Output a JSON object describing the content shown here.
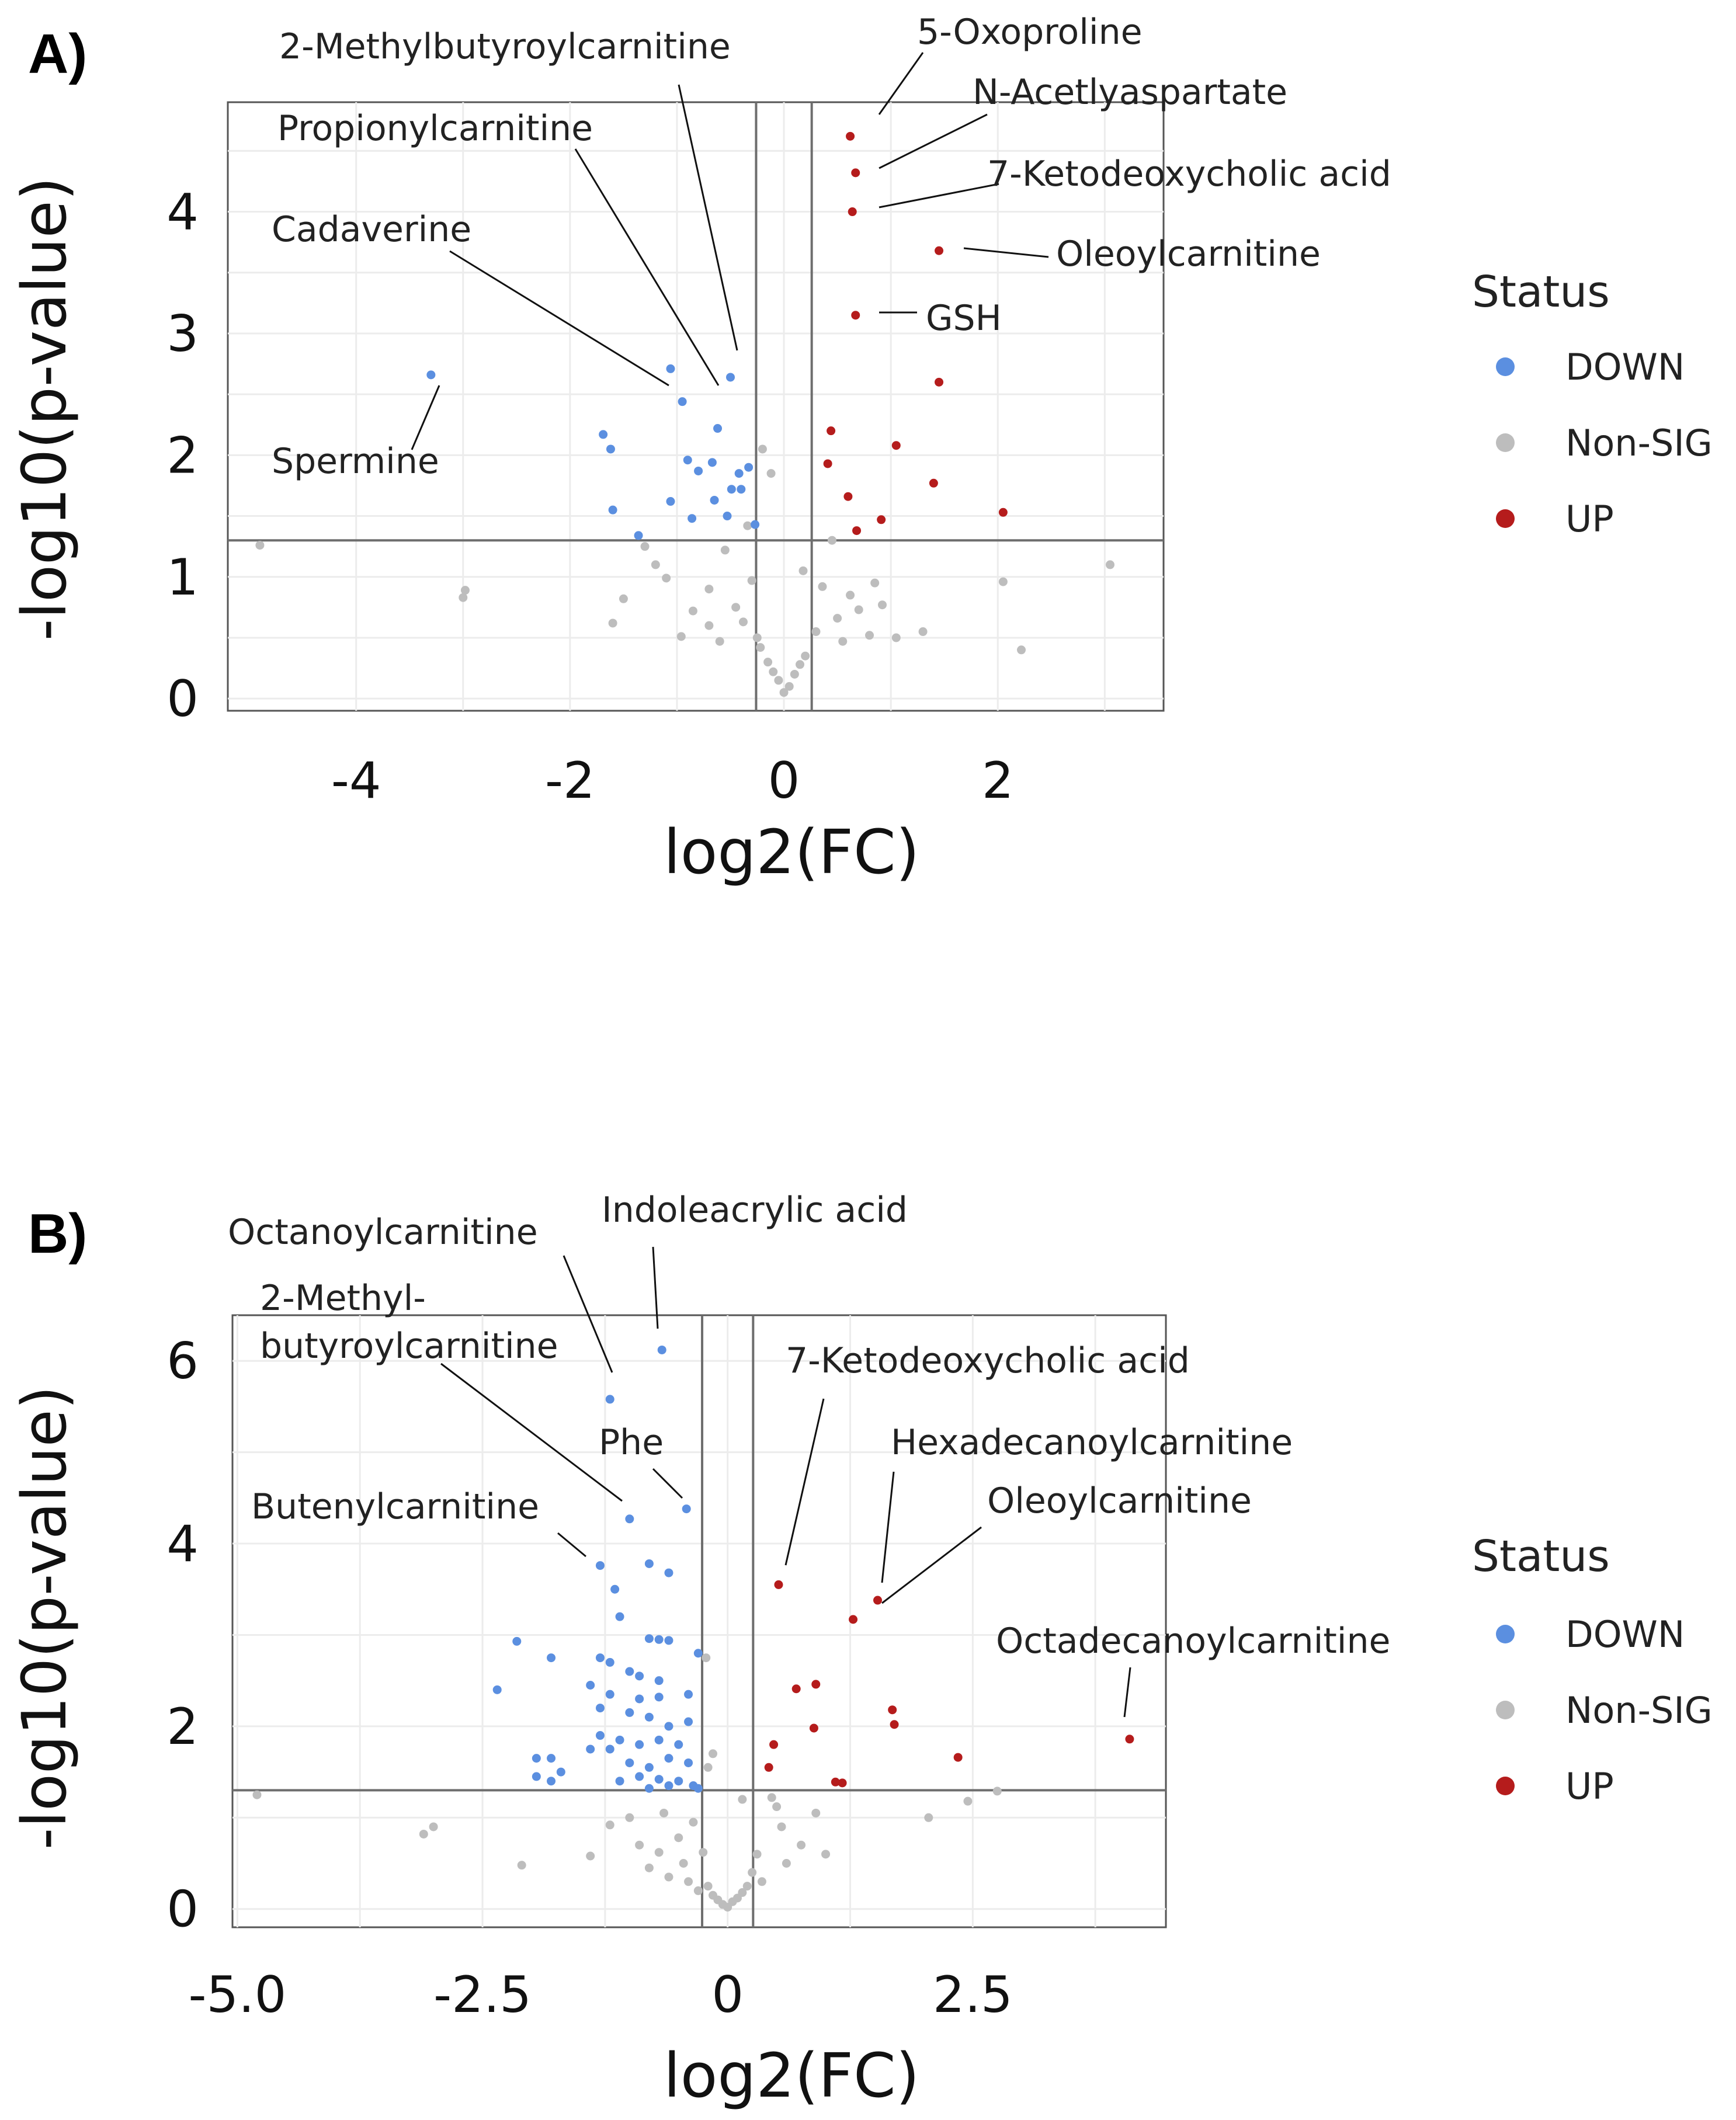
{
  "colors": {
    "DOWN": "#5b8fe0",
    "Non-SIG": "#bdbdbd",
    "UP": "#b51c1c"
  },
  "chart_data": [
    {
      "type": "scatter",
      "panel_label": "A)",
      "xlabel": "log2(FC)",
      "ylabel": "-log10(p-value)",
      "xlim": [
        -5.2,
        3.55
      ],
      "ylim": [
        -0.1,
        4.9
      ],
      "xticks": [
        -4,
        -2,
        0,
        2
      ],
      "xtick_labels": [
        "-4",
        "-2",
        "0",
        "2"
      ],
      "yticks": [
        0,
        1,
        2,
        3,
        4
      ],
      "ytick_labels": [
        "0",
        "1",
        "2",
        "3",
        "4"
      ],
      "grid": true,
      "thresholds": {
        "fc": [
          -0.26,
          0.26
        ],
        "p": 1.3
      },
      "legend": {
        "title": "Status",
        "position": "right",
        "entries": [
          "DOWN",
          "Non-SIG",
          "UP"
        ]
      },
      "series": [
        {
          "name": "DOWN",
          "points": [
            [
              -3.3,
              2.66
            ],
            [
              -1.06,
              2.71
            ],
            [
              -0.5,
              2.64
            ],
            [
              -0.95,
              2.44
            ],
            [
              -0.62,
              2.22
            ],
            [
              -1.69,
              2.17
            ],
            [
              -1.62,
              2.05
            ],
            [
              -0.9,
              1.96
            ],
            [
              -0.67,
              1.94
            ],
            [
              -0.8,
              1.87
            ],
            [
              -0.33,
              1.9
            ],
            [
              -0.42,
              1.85
            ],
            [
              -0.49,
              1.72
            ],
            [
              -0.4,
              1.72
            ],
            [
              -0.65,
              1.63
            ],
            [
              -1.06,
              1.62
            ],
            [
              -1.6,
              1.55
            ],
            [
              -0.86,
              1.48
            ],
            [
              -0.53,
              1.5
            ],
            [
              -0.27,
              1.43
            ],
            [
              -1.36,
              1.34
            ]
          ]
        },
        {
          "name": "UP",
          "points": [
            [
              0.62,
              4.62
            ],
            [
              0.67,
              4.32
            ],
            [
              0.64,
              4.0
            ],
            [
              1.45,
              3.68
            ],
            [
              0.67,
              3.15
            ],
            [
              1.45,
              2.6
            ],
            [
              0.44,
              2.2
            ],
            [
              1.05,
              2.08
            ],
            [
              0.41,
              1.93
            ],
            [
              1.4,
              1.77
            ],
            [
              0.6,
              1.66
            ],
            [
              2.05,
              1.53
            ],
            [
              0.91,
              1.47
            ],
            [
              0.68,
              1.38
            ]
          ]
        },
        {
          "name": "Non-SIG",
          "points": [
            [
              -4.9,
              1.26
            ],
            [
              -2.98,
              0.89
            ],
            [
              -3.0,
              0.83
            ],
            [
              -1.6,
              0.62
            ],
            [
              -1.5,
              0.82
            ],
            [
              -1.3,
              1.25
            ],
            [
              -1.1,
              0.99
            ],
            [
              -0.96,
              0.51
            ],
            [
              -0.85,
              0.72
            ],
            [
              -0.7,
              0.9
            ],
            [
              -0.6,
              0.47
            ],
            [
              -0.55,
              1.22
            ],
            [
              -0.45,
              0.75
            ],
            [
              -0.38,
              0.63
            ],
            [
              -0.3,
              0.97
            ],
            [
              -0.22,
              0.42
            ],
            [
              -0.15,
              0.3
            ],
            [
              -0.1,
              0.22
            ],
            [
              -0.05,
              0.15
            ],
            [
              0.0,
              0.05
            ],
            [
              0.05,
              0.1
            ],
            [
              0.1,
              0.2
            ],
            [
              0.15,
              0.28
            ],
            [
              0.2,
              0.35
            ],
            [
              0.3,
              0.55
            ],
            [
              0.36,
              0.92
            ],
            [
              0.5,
              0.66
            ],
            [
              0.55,
              0.47
            ],
            [
              0.62,
              0.85
            ],
            [
              0.7,
              0.73
            ],
            [
              0.8,
              0.52
            ],
            [
              0.92,
              0.77
            ],
            [
              1.05,
              0.5
            ],
            [
              1.3,
              0.55
            ],
            [
              2.05,
              0.96
            ],
            [
              2.22,
              0.4
            ],
            [
              3.05,
              1.1
            ],
            [
              -0.12,
              1.85
            ],
            [
              -0.2,
              2.05
            ],
            [
              -0.34,
              1.42
            ],
            [
              0.18,
              1.05
            ],
            [
              -1.2,
              1.1
            ],
            [
              -0.25,
              0.5
            ],
            [
              0.45,
              1.3
            ],
            [
              0.85,
              0.95
            ],
            [
              -0.7,
              0.6
            ]
          ]
        }
      ],
      "annotations": [
        {
          "text": "2-Methylbutyroylcarnitine",
          "point": [
            -0.5,
            2.64
          ]
        },
        {
          "text": "Propionylcarnitine",
          "point": [
            -0.62,
            2.22
          ]
        },
        {
          "text": "Cadaverine",
          "point": [
            -1.06,
            2.71
          ]
        },
        {
          "text": "Spermine",
          "point": [
            -3.3,
            2.66
          ]
        },
        {
          "text": "5-Oxoproline",
          "point": [
            0.62,
            4.62
          ]
        },
        {
          "text": "N-Acetlyaspartate",
          "point": [
            0.67,
            4.32
          ]
        },
        {
          "text": "7-Ketodeoxycholic acid",
          "point": [
            0.64,
            4.0
          ]
        },
        {
          "text": "Oleoylcarnitine",
          "point": [
            1.45,
            3.68
          ]
        },
        {
          "text": "GSH",
          "point": [
            0.67,
            3.15
          ]
        }
      ]
    },
    {
      "type": "scatter",
      "panel_label": "B)",
      "xlabel": "log2(FC)",
      "ylabel": "-log10(p-value)",
      "xlim": [
        -5.05,
        4.47
      ],
      "ylim": [
        -0.2,
        6.5
      ],
      "xticks": [
        -5.0,
        -2.5,
        0,
        2.5
      ],
      "xtick_labels": [
        "-5.0",
        "-2.5",
        "0",
        "2.5"
      ],
      "yticks": [
        0,
        2,
        4,
        6
      ],
      "ytick_labels": [
        "0",
        "2",
        "4",
        "6"
      ],
      "grid": true,
      "thresholds": {
        "fc": [
          -0.26,
          0.26
        ],
        "p": 1.3
      },
      "legend": {
        "title": "Status",
        "position": "right",
        "entries": [
          "DOWN",
          "Non-SIG",
          "UP"
        ]
      },
      "series": [
        {
          "name": "DOWN",
          "points": [
            [
              -0.67,
              6.12
            ],
            [
              -1.2,
              5.58
            ],
            [
              -1.0,
              4.27
            ],
            [
              -0.42,
              4.38
            ],
            [
              -1.3,
              3.76
            ],
            [
              -0.8,
              3.78
            ],
            [
              -0.6,
              3.68
            ],
            [
              -1.15,
              3.5
            ],
            [
              -1.1,
              3.2
            ],
            [
              -2.15,
              2.93
            ],
            [
              -0.8,
              2.96
            ],
            [
              -0.7,
              2.95
            ],
            [
              -0.6,
              2.94
            ],
            [
              -0.3,
              2.8
            ],
            [
              -1.8,
              2.75
            ],
            [
              -1.3,
              2.75
            ],
            [
              -1.2,
              2.7
            ],
            [
              -1.0,
              2.6
            ],
            [
              -0.9,
              2.55
            ],
            [
              -0.7,
              2.5
            ],
            [
              -1.4,
              2.45
            ],
            [
              -1.2,
              2.35
            ],
            [
              -2.35,
              2.4
            ],
            [
              -0.9,
              2.3
            ],
            [
              -0.7,
              2.32
            ],
            [
              -0.4,
              2.35
            ],
            [
              -1.3,
              2.2
            ],
            [
              -1.0,
              2.15
            ],
            [
              -0.8,
              2.1
            ],
            [
              -0.6,
              2.0
            ],
            [
              -0.4,
              2.05
            ],
            [
              -1.3,
              1.9
            ],
            [
              -1.1,
              1.85
            ],
            [
              -0.9,
              1.8
            ],
            [
              -0.7,
              1.85
            ],
            [
              -0.5,
              1.8
            ],
            [
              -1.4,
              1.75
            ],
            [
              -1.2,
              1.75
            ],
            [
              -0.6,
              1.65
            ],
            [
              -0.4,
              1.6
            ],
            [
              -1.95,
              1.65
            ],
            [
              -1.8,
              1.65
            ],
            [
              -1.0,
              1.6
            ],
            [
              -0.8,
              1.55
            ],
            [
              -1.7,
              1.5
            ],
            [
              -0.9,
              1.45
            ],
            [
              -0.7,
              1.42
            ],
            [
              -0.5,
              1.4
            ],
            [
              -1.95,
              1.45
            ],
            [
              -1.8,
              1.4
            ],
            [
              -1.1,
              1.4
            ],
            [
              -0.6,
              1.35
            ],
            [
              -0.35,
              1.35
            ],
            [
              -0.3,
              1.32
            ],
            [
              -0.8,
              1.32
            ]
          ]
        },
        {
          "name": "UP",
          "points": [
            [
              0.52,
              3.55
            ],
            [
              1.53,
              3.38
            ],
            [
              1.28,
              3.17
            ],
            [
              0.9,
              2.46
            ],
            [
              0.7,
              2.41
            ],
            [
              1.68,
              2.18
            ],
            [
              1.7,
              2.02
            ],
            [
              0.88,
              1.98
            ],
            [
              0.47,
              1.8
            ],
            [
              2.35,
              1.66
            ],
            [
              0.42,
              1.55
            ],
            [
              1.1,
              1.39
            ],
            [
              1.17,
              1.38
            ],
            [
              4.1,
              1.86
            ]
          ]
        },
        {
          "name": "Non-SIG",
          "points": [
            [
              -4.8,
              1.25
            ],
            [
              -3.1,
              0.82
            ],
            [
              -3.0,
              0.9
            ],
            [
              -2.1,
              0.48
            ],
            [
              -1.4,
              0.58
            ],
            [
              -1.2,
              0.92
            ],
            [
              -1.0,
              1.0
            ],
            [
              -0.9,
              0.7
            ],
            [
              -0.8,
              0.45
            ],
            [
              -0.7,
              0.62
            ],
            [
              -0.6,
              0.35
            ],
            [
              -0.5,
              0.78
            ],
            [
              -0.45,
              0.5
            ],
            [
              -0.4,
              0.3
            ],
            [
              -0.35,
              0.95
            ],
            [
              -0.3,
              0.2
            ],
            [
              -0.25,
              0.62
            ],
            [
              -0.2,
              0.25
            ],
            [
              -0.15,
              0.15
            ],
            [
              -0.1,
              0.1
            ],
            [
              -0.05,
              0.05
            ],
            [
              0.0,
              0.02
            ],
            [
              0.05,
              0.08
            ],
            [
              0.1,
              0.12
            ],
            [
              0.15,
              0.18
            ],
            [
              0.2,
              0.25
            ],
            [
              0.25,
              0.4
            ],
            [
              0.3,
              0.6
            ],
            [
              0.35,
              0.3
            ],
            [
              0.45,
              1.22
            ],
            [
              0.55,
              0.9
            ],
            [
              0.6,
              0.5
            ],
            [
              0.75,
              0.7
            ],
            [
              0.9,
              1.05
            ],
            [
              1.0,
              0.6
            ],
            [
              2.05,
              1.0
            ],
            [
              2.45,
              1.18
            ],
            [
              2.75,
              1.29
            ],
            [
              -0.22,
              2.75
            ],
            [
              -0.15,
              1.7
            ],
            [
              -0.2,
              1.55
            ],
            [
              0.15,
              1.2
            ],
            [
              0.5,
              1.12
            ],
            [
              -0.65,
              1.05
            ]
          ]
        }
      ],
      "annotations": [
        {
          "text": "Octanoylcarnitine",
          "point": [
            -1.2,
            5.58
          ]
        },
        {
          "text": "Indoleacrylic acid",
          "point": [
            -0.67,
            6.12
          ]
        },
        {
          "text": "2-Methyl-",
          "point": null
        },
        {
          "text": "butyroylcarnitine",
          "point": [
            -1.0,
            4.27
          ]
        },
        {
          "text": "Phe",
          "point": [
            -0.42,
            4.38
          ]
        },
        {
          "text": "Butenylcarnitine",
          "point": [
            -1.3,
            3.76
          ]
        },
        {
          "text": "7-Ketodeoxycholic acid",
          "point": [
            0.52,
            3.55
          ]
        },
        {
          "text": "Hexadecanoylcarnitine",
          "point": [
            1.53,
            3.38
          ]
        },
        {
          "text": "Oleoylcarnitine",
          "point": [
            1.28,
            3.17
          ]
        },
        {
          "text": "Octadecanoylcarnitine",
          "point": [
            4.1,
            1.86
          ]
        }
      ]
    }
  ]
}
